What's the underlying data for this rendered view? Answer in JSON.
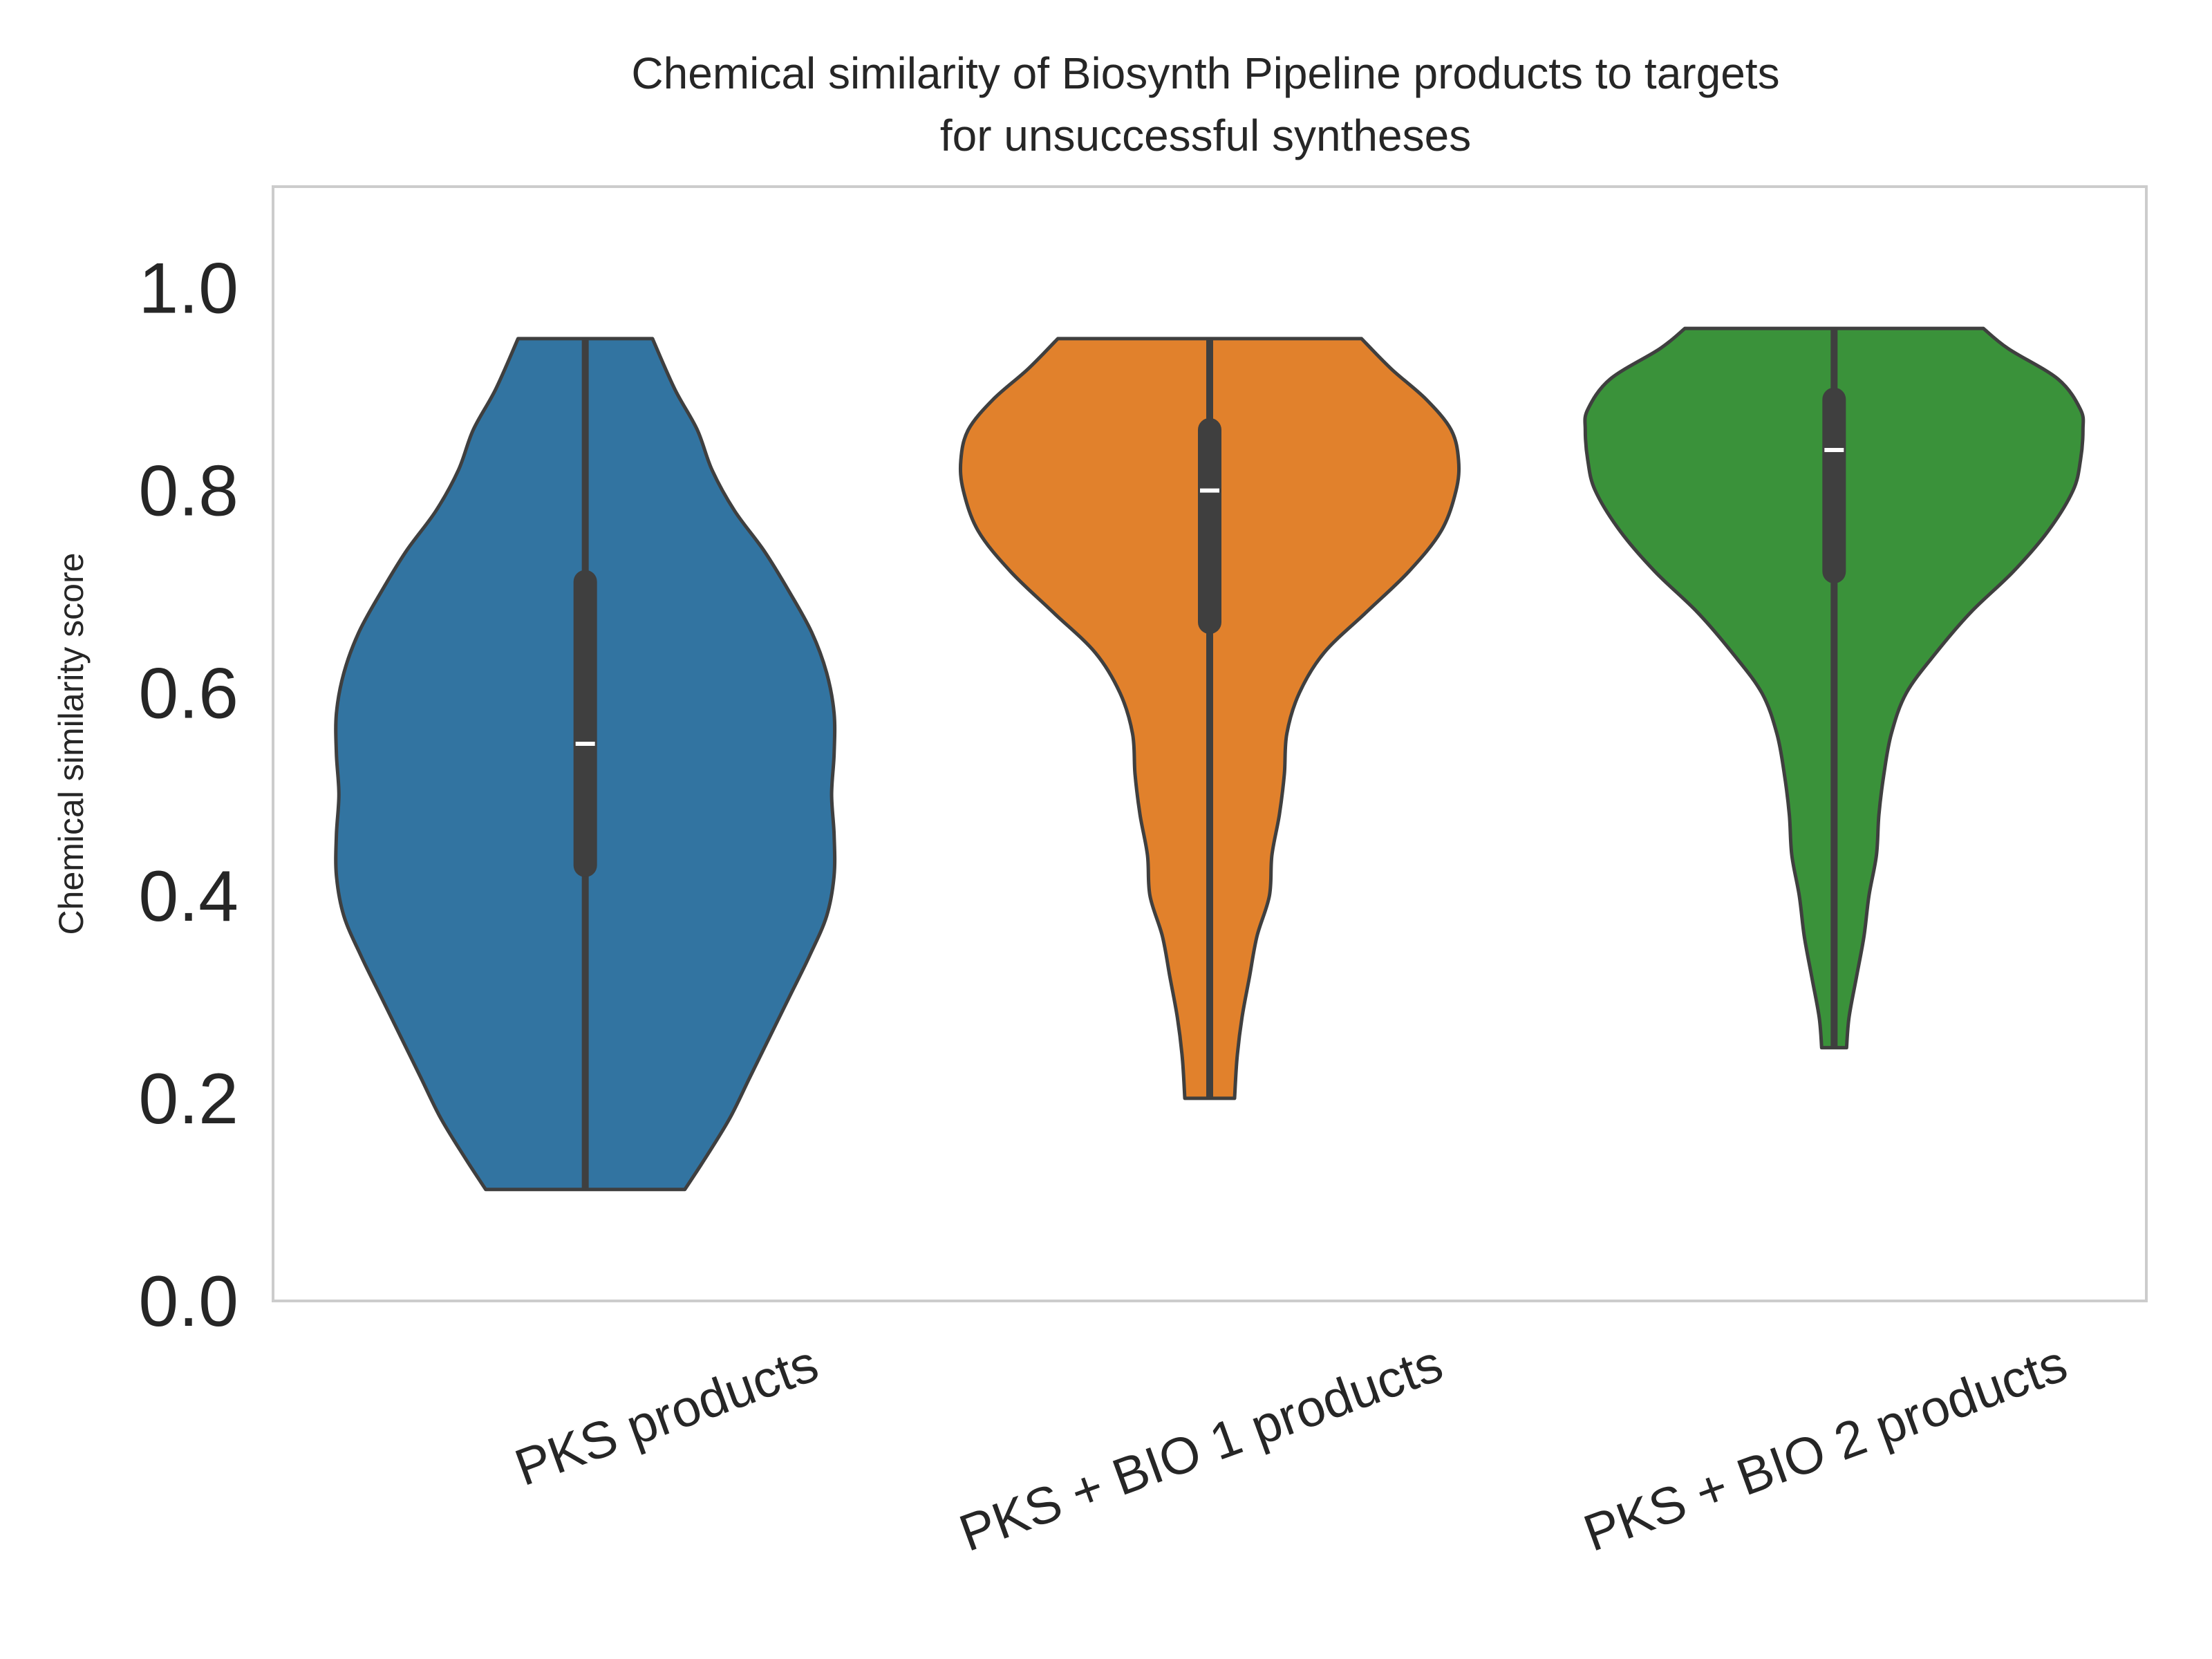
{
  "chart_data": {
    "type": "violin",
    "title_lines": [
      "Chemical similarity of Biosynth Pipeline products to targets",
      "for unsuccessful syntheses"
    ],
    "xlabel": "",
    "ylabel": "Chemical similarity score",
    "ylim": [
      0.0,
      1.1
    ],
    "y_ticks": [
      0.0,
      0.2,
      0.4,
      0.6,
      0.8,
      1.0
    ],
    "y_tick_labels": [
      "0.0",
      "0.2",
      "0.4",
      "0.6",
      "0.8",
      "1.0"
    ],
    "grid": false,
    "categories": [
      "PKS products",
      "PKS + BIO 1 products",
      "PKS + BIO 2 products"
    ],
    "series": [
      {
        "category": "PKS products",
        "color": "#3274a1",
        "min": 0.11,
        "q1": 0.43,
        "median": 0.55,
        "q3": 0.71,
        "max": 0.95,
        "density_profile": [
          [
            0.11,
            0.4
          ],
          [
            0.14,
            0.48
          ],
          [
            0.18,
            0.58
          ],
          [
            0.22,
            0.66
          ],
          [
            0.26,
            0.74
          ],
          [
            0.3,
            0.82
          ],
          [
            0.34,
            0.9
          ],
          [
            0.38,
            0.97
          ],
          [
            0.42,
            1.0
          ],
          [
            0.46,
            1.0
          ],
          [
            0.5,
            0.99
          ],
          [
            0.54,
            1.0
          ],
          [
            0.58,
            1.0
          ],
          [
            0.62,
            0.97
          ],
          [
            0.66,
            0.91
          ],
          [
            0.7,
            0.82
          ],
          [
            0.74,
            0.72
          ],
          [
            0.78,
            0.6
          ],
          [
            0.82,
            0.51
          ],
          [
            0.86,
            0.45
          ],
          [
            0.9,
            0.36
          ],
          [
            0.95,
            0.27
          ]
        ]
      },
      {
        "category": "PKS + BIO 1 products",
        "color": "#e1812c",
        "min": 0.2,
        "q1": 0.67,
        "median": 0.8,
        "q3": 0.86,
        "max": 0.95,
        "density_profile": [
          [
            0.2,
            0.1
          ],
          [
            0.24,
            0.11
          ],
          [
            0.28,
            0.13
          ],
          [
            0.32,
            0.16
          ],
          [
            0.36,
            0.19
          ],
          [
            0.4,
            0.24
          ],
          [
            0.44,
            0.25
          ],
          [
            0.48,
            0.28
          ],
          [
            0.52,
            0.3
          ],
          [
            0.56,
            0.31
          ],
          [
            0.6,
            0.36
          ],
          [
            0.64,
            0.46
          ],
          [
            0.68,
            0.63
          ],
          [
            0.72,
            0.8
          ],
          [
            0.76,
            0.93
          ],
          [
            0.8,
            0.99
          ],
          [
            0.83,
            1.0
          ],
          [
            0.86,
            0.97
          ],
          [
            0.89,
            0.87
          ],
          [
            0.92,
            0.73
          ],
          [
            0.95,
            0.61
          ]
        ]
      },
      {
        "category": "PKS + BIO 2 products",
        "color": "#3a923a",
        "min": 0.25,
        "q1": 0.72,
        "median": 0.84,
        "q3": 0.89,
        "max": 0.96,
        "density_profile": [
          [
            0.25,
            0.05
          ],
          [
            0.28,
            0.06
          ],
          [
            0.32,
            0.09
          ],
          [
            0.36,
            0.12
          ],
          [
            0.4,
            0.14
          ],
          [
            0.44,
            0.17
          ],
          [
            0.48,
            0.18
          ],
          [
            0.52,
            0.2
          ],
          [
            0.56,
            0.23
          ],
          [
            0.6,
            0.29
          ],
          [
            0.64,
            0.41
          ],
          [
            0.68,
            0.55
          ],
          [
            0.72,
            0.72
          ],
          [
            0.76,
            0.86
          ],
          [
            0.8,
            0.96
          ],
          [
            0.83,
            0.99
          ],
          [
            0.86,
            1.0
          ],
          [
            0.88,
            0.99
          ],
          [
            0.91,
            0.9
          ],
          [
            0.94,
            0.7
          ],
          [
            0.96,
            0.6
          ]
        ]
      }
    ],
    "violin_edge_color": "#3f3f3f",
    "box_color": "#3f3f3f",
    "median_marker_color": "#ffffff"
  }
}
